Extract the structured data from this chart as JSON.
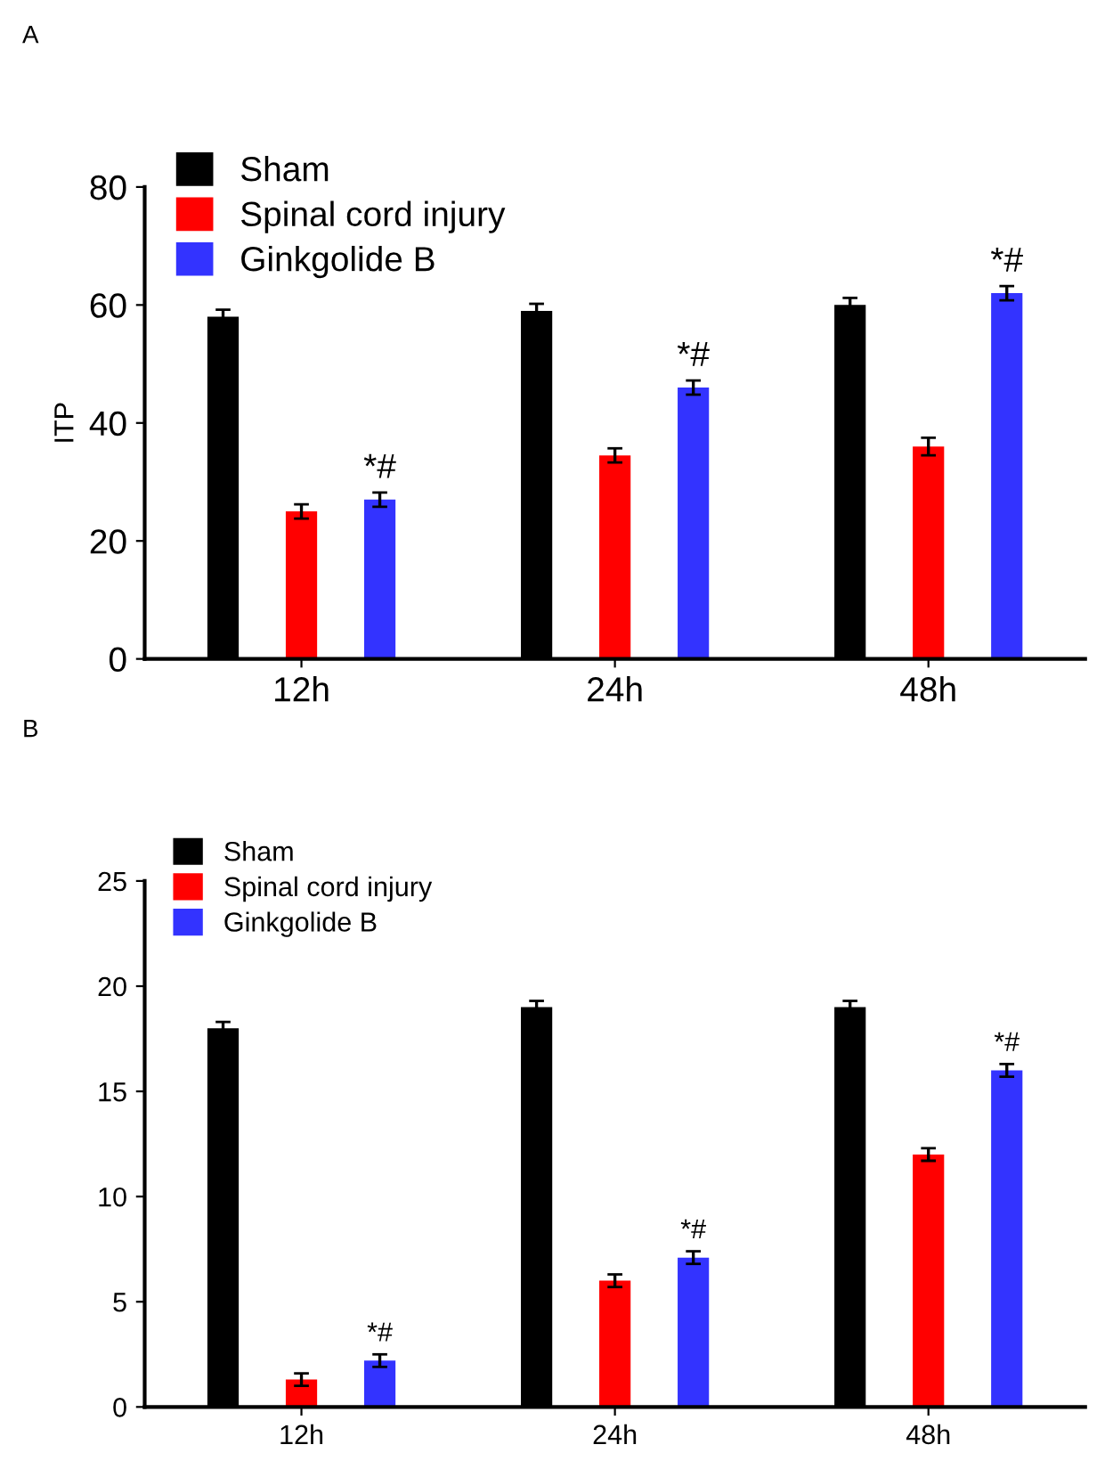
{
  "chart_data": [
    {
      "type": "bar",
      "title": "A",
      "ylabel": "ITP",
      "categories": [
        "12h",
        "24h",
        "48h"
      ],
      "series": [
        {
          "name": "Sham",
          "color": "#000000",
          "values": [
            58,
            59,
            60
          ],
          "errors": [
            1.2,
            1.2,
            1.2
          ]
        },
        {
          "name": "Spinal cord injury",
          "color": "#ff0000",
          "values": [
            25,
            34.5,
            36
          ],
          "errors": [
            1.2,
            1.2,
            1.5
          ]
        },
        {
          "name": "Ginkgolide B",
          "color": "#3333ff",
          "values": [
            27,
            46,
            62
          ],
          "errors": [
            1.2,
            1.2,
            1.2
          ]
        }
      ],
      "ylim": [
        0,
        80
      ],
      "yticks": [
        0,
        20,
        40,
        60,
        80
      ],
      "legend": "top left",
      "grid": false,
      "annotations": [
        "*#",
        "*#",
        "*#"
      ]
    },
    {
      "type": "bar",
      "title": "B",
      "categories": [
        "12h",
        "24h",
        "48h"
      ],
      "series": [
        {
          "name": "Sham",
          "color": "#000000",
          "values": [
            18,
            19,
            19
          ],
          "errors": [
            0.3,
            0.3,
            0.3
          ]
        },
        {
          "name": "Spinal cord injury",
          "color": "#ff0000",
          "values": [
            1.3,
            6,
            12
          ],
          "errors": [
            0.3,
            0.3,
            0.3
          ]
        },
        {
          "name": "Ginkgolide B",
          "color": "#3333ff",
          "values": [
            2.2,
            7.1,
            16
          ],
          "errors": [
            0.3,
            0.3,
            0.3
          ]
        }
      ],
      "ylim": [
        0,
        25
      ],
      "yticks": [
        0,
        5,
        10,
        15,
        20,
        25
      ],
      "legend": "top left",
      "grid": false,
      "annotations": [
        "*#",
        "*#",
        "*#"
      ]
    }
  ]
}
